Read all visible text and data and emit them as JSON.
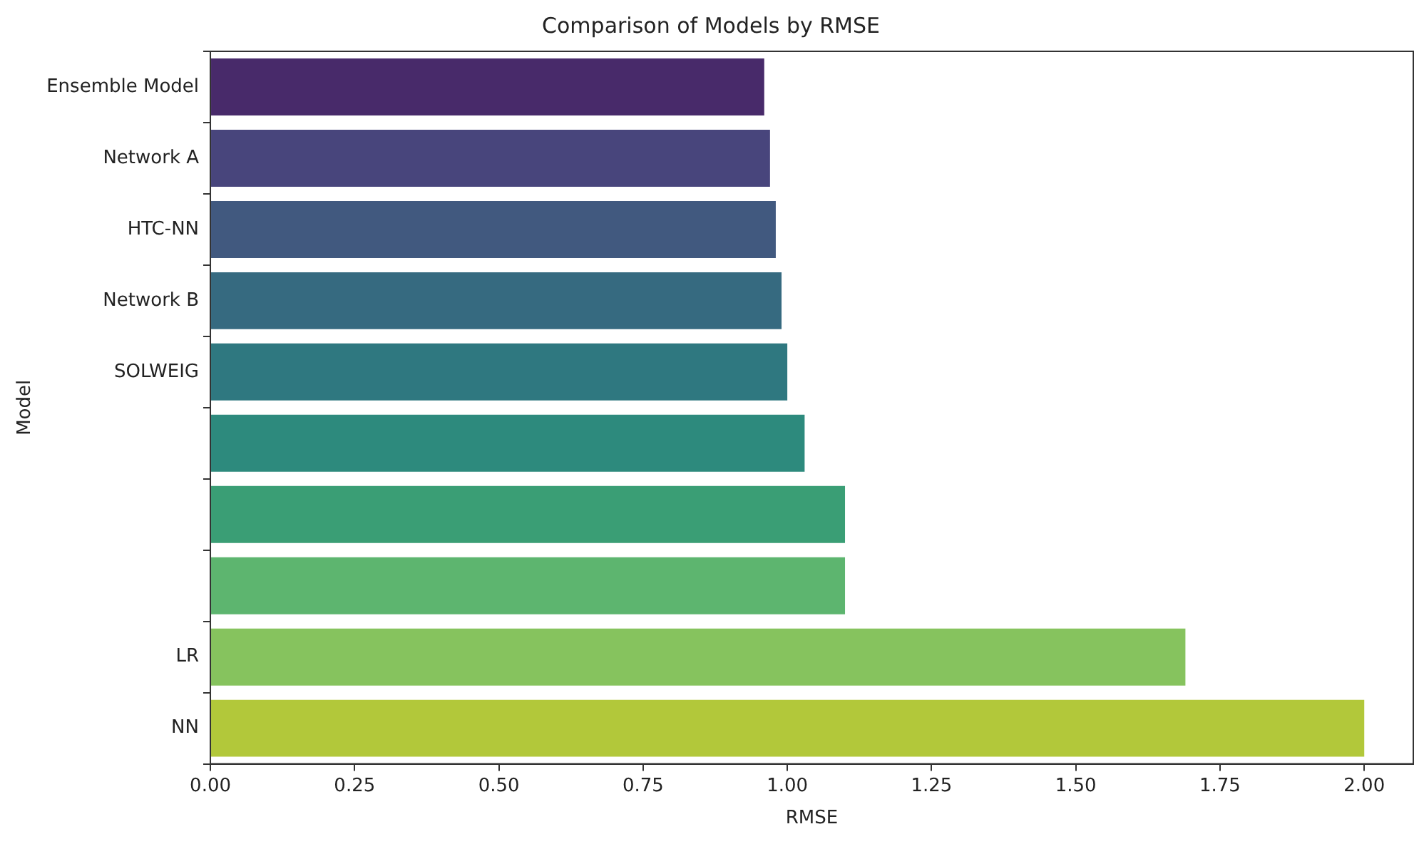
{
  "chart_data": {
    "type": "bar",
    "orientation": "horizontal",
    "title": "Comparison of Models by RMSE",
    "xlabel": "RMSE",
    "ylabel": "Model",
    "categories": [
      "Ensemble Model",
      "Network A",
      "HTC-NN",
      "Network B",
      "SOLWEIG",
      null,
      null,
      null,
      "LR",
      "NN"
    ],
    "values": [
      0.96,
      0.97,
      0.98,
      0.99,
      1.0,
      1.03,
      1.1,
      1.1,
      1.69,
      2.0
    ],
    "colors": [
      "#482a6a",
      "#48457c",
      "#41597f",
      "#366a80",
      "#2f7880",
      "#2d8a7d",
      "#3a9e75",
      "#5db56f",
      "#86c35e",
      "#b2c83a"
    ],
    "xlim": [
      0,
      2.085
    ],
    "xticks": [
      {
        "value": 0,
        "label": "0.00"
      },
      {
        "value": 0.25,
        "label": "0.25"
      },
      {
        "value": 0.5,
        "label": "0.50"
      },
      {
        "value": 0.75,
        "label": "0.75"
      },
      {
        "value": 1,
        "label": "1.00"
      },
      {
        "value": 1.25,
        "label": "1.25"
      },
      {
        "value": 1.5,
        "label": "1.50"
      },
      {
        "value": 1.75,
        "label": "1.75"
      },
      {
        "value": 2,
        "label": "2.00"
      }
    ],
    "grid": false,
    "legend": false
  }
}
